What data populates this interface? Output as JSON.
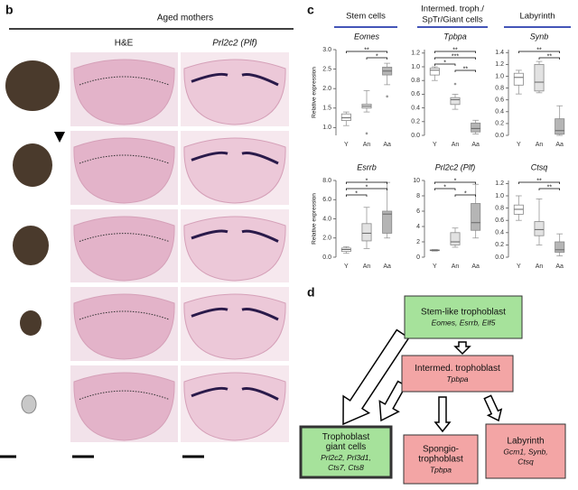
{
  "panel_b": {
    "label": "b",
    "header": "Aged mothers",
    "columns": [
      "H&E",
      "Prl2c2 (Plf)"
    ]
  },
  "panel_c": {
    "label": "c",
    "group_headers": [
      [
        "Stem cells"
      ],
      [
        "Intermed. troph./",
        "SpTr/Giant cells"
      ],
      [
        "Labyrinth"
      ]
    ]
  },
  "chart_data": [
    {
      "type": "box",
      "title": "Eomes",
      "ylabel": "Relative expression",
      "categories": [
        "Y",
        "An",
        "Aa"
      ],
      "box_colors": [
        "#ffffff",
        "#e2e2e2",
        "#b5b5b5"
      ],
      "ylim": [
        0.8,
        3.0
      ],
      "yticks": [
        {
          "value": 1,
          "label": "1.0"
        },
        {
          "value": 1.5,
          "label": "1.5"
        },
        {
          "value": 2,
          "label": "2.0"
        },
        {
          "value": 2.5,
          "label": "2.5"
        },
        {
          "value": 3,
          "label": "3.0"
        }
      ],
      "boxes": [
        {
          "min": 1.05,
          "q1": 1.18,
          "median": 1.25,
          "q3": 1.35,
          "max": 1.4,
          "outliers": []
        },
        {
          "min": 1.4,
          "q1": 1.5,
          "median": 1.55,
          "q3": 1.6,
          "max": 1.95,
          "outliers": [
            0.85
          ]
        },
        {
          "min": 2.1,
          "q1": 2.35,
          "median": 2.45,
          "q3": 2.55,
          "max": 2.65,
          "outliers": [
            1.8
          ]
        }
      ],
      "significance": [
        {
          "text": "**",
          "pair": [
            "Y",
            "Aa"
          ]
        },
        {
          "text": "*",
          "pair": [
            "An",
            "Aa"
          ]
        }
      ]
    },
    {
      "type": "box",
      "title": "Tpbpa",
      "categories": [
        "Y",
        "An",
        "Aa"
      ],
      "box_colors": [
        "#ffffff",
        "#e2e2e2",
        "#b5b5b5"
      ],
      "ylim": [
        0,
        1.25
      ],
      "yticks": [
        {
          "value": 0,
          "label": "0.0"
        },
        {
          "value": 0.2,
          "label": "0.2"
        },
        {
          "value": 0.4,
          "label": "0.4"
        },
        {
          "value": 0.6,
          "label": "0.6"
        },
        {
          "value": 0.8,
          "label": "0.8"
        },
        {
          "value": 1,
          "label": "1.0"
        },
        {
          "value": 1.2,
          "label": "1.2"
        }
      ],
      "boxes": [
        {
          "min": 0.8,
          "q1": 0.88,
          "median": 0.95,
          "q3": 0.98,
          "max": 1.0,
          "outliers": []
        },
        {
          "min": 0.38,
          "q1": 0.45,
          "median": 0.52,
          "q3": 0.55,
          "max": 0.6,
          "outliers": [
            0.75
          ]
        },
        {
          "min": 0.02,
          "q1": 0.05,
          "median": 0.1,
          "q3": 0.18,
          "max": 0.22,
          "outliers": []
        }
      ],
      "significance": [
        {
          "text": "**",
          "pair": [
            "Y",
            "Aa"
          ]
        },
        {
          "text": "***",
          "pair": [
            "Y",
            "Aa"
          ]
        },
        {
          "text": "*",
          "pair": [
            "Y",
            "An"
          ]
        },
        {
          "text": "**",
          "pair": [
            "An",
            "Aa"
          ]
        }
      ]
    },
    {
      "type": "box",
      "title": "Synb",
      "categories": [
        "Y",
        "An",
        "Aa"
      ],
      "box_colors": [
        "#ffffff",
        "#e2e2e2",
        "#b5b5b5"
      ],
      "ylim": [
        0,
        1.45
      ],
      "yticks": [
        {
          "value": 0,
          "label": "0.0"
        },
        {
          "value": 0.2,
          "label": "0.2"
        },
        {
          "value": 0.4,
          "label": "0.4"
        },
        {
          "value": 0.6,
          "label": "0.6"
        },
        {
          "value": 0.8,
          "label": "0.8"
        },
        {
          "value": 1,
          "label": "1.0"
        },
        {
          "value": 1.2,
          "label": "1.2"
        },
        {
          "value": 1.4,
          "label": "1.4"
        }
      ],
      "boxes": [
        {
          "min": 0.7,
          "q1": 0.85,
          "median": 0.98,
          "q3": 1.05,
          "max": 1.1,
          "outliers": []
        },
        {
          "min": 0.72,
          "q1": 0.75,
          "median": 0.9,
          "q3": 1.2,
          "max": 1.25,
          "outliers": []
        },
        {
          "min": 0,
          "q1": 0.02,
          "median": 0.08,
          "q3": 0.28,
          "max": 0.5,
          "outliers": []
        }
      ],
      "significance": [
        {
          "text": "**",
          "pair": [
            "Y",
            "Aa"
          ]
        },
        {
          "text": "**",
          "pair": [
            "An",
            "Aa"
          ]
        }
      ]
    },
    {
      "type": "box",
      "title": "Esrrb",
      "ylabel": "Relative expression",
      "categories": [
        "Y",
        "An",
        "Aa"
      ],
      "box_colors": [
        "#ffffff",
        "#e2e2e2",
        "#b5b5b5"
      ],
      "ylim": [
        0,
        8
      ],
      "yticks": [
        {
          "value": 0,
          "label": "0.0"
        },
        {
          "value": 2,
          "label": "2.0"
        },
        {
          "value": 4,
          "label": "4.0"
        },
        {
          "value": 6,
          "label": "6.0"
        },
        {
          "value": 8,
          "label": "8.0"
        }
      ],
      "boxes": [
        {
          "min": 0.4,
          "q1": 0.6,
          "median": 0.8,
          "q3": 0.95,
          "max": 1.1,
          "outliers": []
        },
        {
          "min": 0.9,
          "q1": 1.7,
          "median": 2.5,
          "q3": 3.5,
          "max": 5.2,
          "outliers": []
        },
        {
          "min": 2.0,
          "q1": 2.5,
          "median": 4.5,
          "q3": 4.8,
          "max": 7.8,
          "outliers": []
        }
      ],
      "significance": [
        {
          "text": "*",
          "pair": [
            "Y",
            "Aa"
          ]
        },
        {
          "text": "*",
          "pair": [
            "Y",
            "Aa"
          ]
        },
        {
          "text": "*",
          "pair": [
            "Y",
            "An"
          ]
        }
      ]
    },
    {
      "type": "box",
      "title": "Prl2c2 (Plf)",
      "categories": [
        "Y",
        "An",
        "Aa"
      ],
      "box_colors": [
        "#ffffff",
        "#e2e2e2",
        "#b5b5b5"
      ],
      "ylim": [
        0,
        10
      ],
      "yticks": [
        0,
        2,
        4,
        6,
        8,
        10
      ],
      "boxes": [
        {
          "min": 0.8,
          "q1": 0.85,
          "median": 0.9,
          "q3": 0.95,
          "max": 1.0,
          "outliers": []
        },
        {
          "min": 1.3,
          "q1": 1.6,
          "median": 2.0,
          "q3": 3.2,
          "max": 3.8,
          "outliers": []
        },
        {
          "min": 2.5,
          "q1": 3.5,
          "median": 4.5,
          "q3": 7.0,
          "max": 9.5,
          "outliers": []
        }
      ],
      "significance": [
        {
          "text": "*",
          "pair": [
            "Y",
            "Aa"
          ]
        },
        {
          "text": "*",
          "pair": [
            "Y",
            "An"
          ]
        },
        {
          "text": "*",
          "pair": [
            "An",
            "Aa"
          ]
        }
      ]
    },
    {
      "type": "box",
      "title": "Ctsq",
      "categories": [
        "Y",
        "An",
        "Aa"
      ],
      "box_colors": [
        "#ffffff",
        "#e2e2e2",
        "#b5b5b5"
      ],
      "ylim": [
        0,
        1.25
      ],
      "yticks": [
        {
          "value": 0,
          "label": "0.0"
        },
        {
          "value": 0.2,
          "label": "0.2"
        },
        {
          "value": 0.4,
          "label": "0.4"
        },
        {
          "value": 0.6,
          "label": "0.6"
        },
        {
          "value": 0.8,
          "label": "0.8"
        },
        {
          "value": 1,
          "label": "1.0"
        },
        {
          "value": 1.2,
          "label": "1.2"
        }
      ],
      "boxes": [
        {
          "min": 0.6,
          "q1": 0.7,
          "median": 0.78,
          "q3": 0.85,
          "max": 1.0,
          "outliers": []
        },
        {
          "min": 0.2,
          "q1": 0.35,
          "median": 0.45,
          "q3": 0.58,
          "max": 0.95,
          "outliers": []
        },
        {
          "min": 0.02,
          "q1": 0.08,
          "median": 0.12,
          "q3": 0.25,
          "max": 0.38,
          "outliers": []
        }
      ],
      "significance": [
        {
          "text": "**",
          "pair": [
            "Y",
            "Aa"
          ]
        },
        {
          "text": "**",
          "pair": [
            "An",
            "Aa"
          ]
        }
      ]
    }
  ],
  "panel_d": {
    "label": "d",
    "nodes": [
      {
        "title": [
          "Stem-like trophoblast"
        ],
        "genes": [
          "Eomes, Esrrb, Elf5"
        ]
      },
      {
        "title": [
          "Intermed. trophoblast"
        ],
        "genes": [
          "Tpbpa"
        ]
      },
      {
        "title": [
          "Trophoblast",
          "giant cells"
        ],
        "genes": [
          "Prl2c2, Prl3d1,",
          "Cts7, Cts8"
        ]
      },
      {
        "title": [
          "Spongio-",
          "trophoblast"
        ],
        "genes": [
          "Tpbpa"
        ]
      },
      {
        "title": [
          "Labyrinth"
        ],
        "genes": [
          "Gcm1, Synb,",
          "Ctsq"
        ]
      }
    ]
  }
}
